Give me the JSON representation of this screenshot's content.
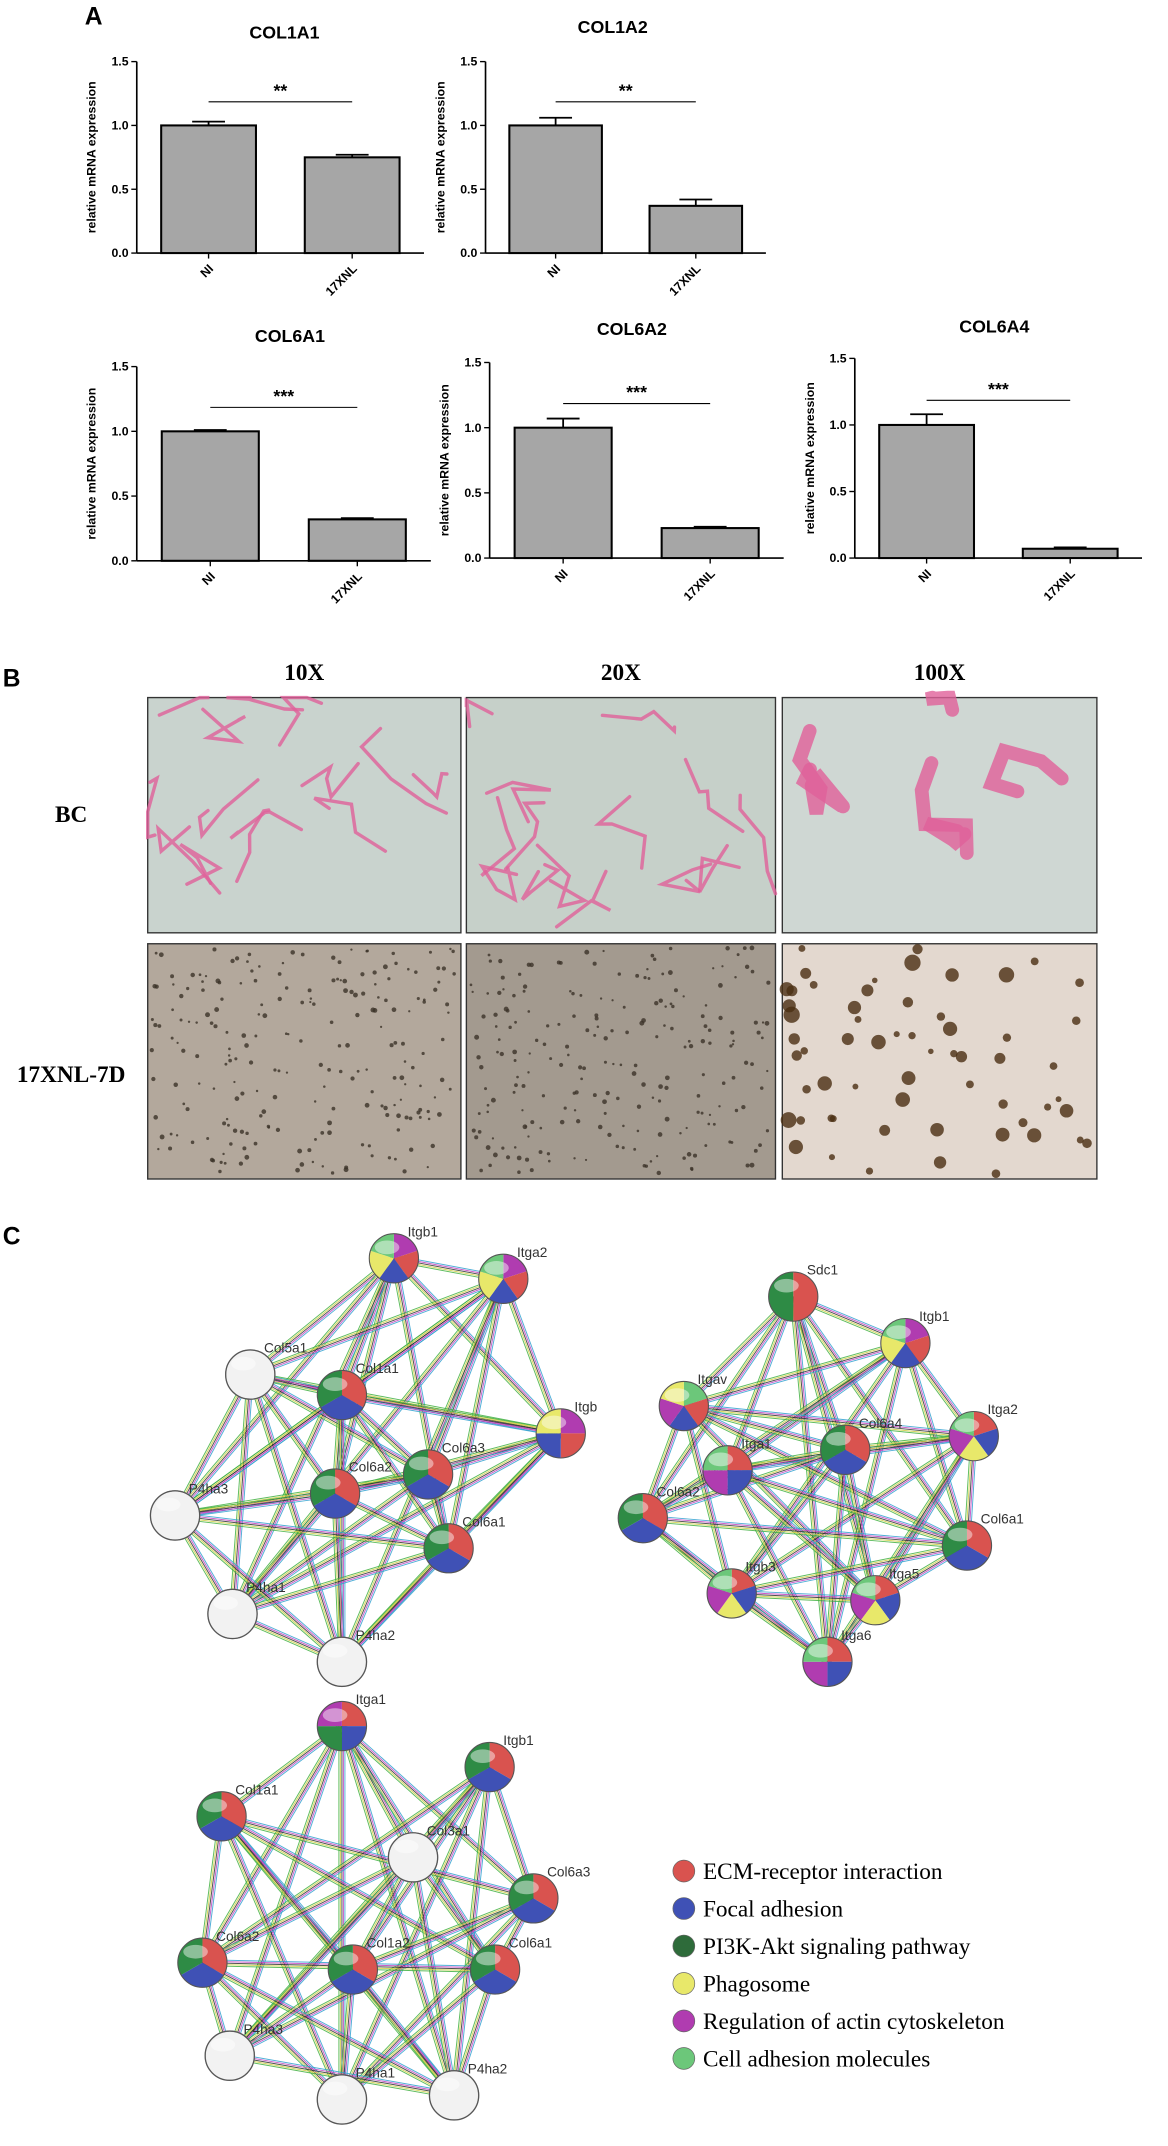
{
  "panel_labels": [
    "A",
    "B",
    "C"
  ],
  "chart_data": [
    {
      "type": "bar",
      "title": "COL1A1",
      "y_label": "relative mRNA expression",
      "categories": [
        "NI",
        "17XNL"
      ],
      "values": [
        1.0,
        0.75
      ],
      "errors": [
        0.03,
        0.02
      ],
      "significance": "**",
      "color": "#a6a6a6",
      "ylim": [
        0,
        1.5
      ],
      "yticks": [
        {
          "value": 0,
          "label": "0.0"
        },
        {
          "value": 0.5,
          "label": "0.5"
        },
        {
          "value": 1,
          "label": "1.0"
        },
        {
          "value": 1.5,
          "label": "1.5"
        }
      ]
    },
    {
      "type": "bar",
      "title": "COL1A2",
      "y_label": "relative mRNA expression",
      "categories": [
        "NI",
        "17XNL"
      ],
      "values": [
        1.0,
        0.37
      ],
      "errors": [
        0.06,
        0.05
      ],
      "significance": "**",
      "color": "#a6a6a6",
      "ylim": [
        0,
        1.5
      ],
      "yticks": [
        {
          "value": 0,
          "label": "0.0"
        },
        {
          "value": 0.5,
          "label": "0.5"
        },
        {
          "value": 1,
          "label": "1.0"
        },
        {
          "value": 1.5,
          "label": "1.5"
        }
      ]
    },
    {
      "type": "bar",
      "title": "COL6A1",
      "y_label": "relative mRNA expression",
      "categories": [
        "NI",
        "17XNL"
      ],
      "values": [
        1.0,
        0.32
      ],
      "errors": [
        0.01,
        0.01
      ],
      "significance": "***",
      "color": "#a6a6a6",
      "ylim": [
        0,
        1.5
      ],
      "yticks": [
        {
          "value": 0,
          "label": "0.0"
        },
        {
          "value": 0.5,
          "label": "0.5"
        },
        {
          "value": 1,
          "label": "1.0"
        },
        {
          "value": 1.5,
          "label": "1.5"
        }
      ]
    },
    {
      "type": "bar",
      "title": "COL6A2",
      "y_label": "relative mRNA expression",
      "categories": [
        "NI",
        "17XNL"
      ],
      "values": [
        1.0,
        0.23
      ],
      "errors": [
        0.07,
        0.01
      ],
      "significance": "***",
      "color": "#a6a6a6",
      "ylim": [
        0,
        1.5
      ],
      "yticks": [
        {
          "value": 0,
          "label": "0.0"
        },
        {
          "value": 0.5,
          "label": "0.5"
        },
        {
          "value": 1,
          "label": "1.0"
        },
        {
          "value": 1.5,
          "label": "1.5"
        }
      ]
    },
    {
      "type": "bar",
      "title": "COL6A4",
      "y_label": "relative mRNA expression",
      "categories": [
        "NI",
        "17XNL"
      ],
      "values": [
        1.0,
        0.07
      ],
      "errors": [
        0.08,
        0.01
      ],
      "significance": "***",
      "color": "#a6a6a6",
      "ylim": [
        0,
        1.5
      ],
      "yticks": [
        {
          "value": 0,
          "label": "0.0"
        },
        {
          "value": 0.5,
          "label": "0.5"
        },
        {
          "value": 1,
          "label": "1.0"
        },
        {
          "value": 1.5,
          "label": "1.5"
        }
      ]
    }
  ],
  "micrographs": {
    "columns": [
      "10X",
      "20X",
      "100X"
    ],
    "rows": [
      "BC",
      "17XNL-7D"
    ]
  },
  "networks": [
    {
      "nodes": [
        {
          "label": "Itgb1",
          "colors": [
            "#b03cb0",
            "#d9534f",
            "#3f51b5",
            "#e8e86a",
            "#6cc77a"
          ]
        },
        {
          "label": "Itga2",
          "colors": [
            "#b03cb0",
            "#d9534f",
            "#3f51b5",
            "#e8e86a",
            "#6cc77a"
          ]
        },
        {
          "label": "Itgb",
          "colors": [
            "#b03cb0",
            "#d9534f",
            "#3f51b5",
            "#e8e86a"
          ]
        },
        {
          "label": "Col5a1",
          "colors": [
            "#f2f2f2"
          ]
        },
        {
          "label": "Col1a1",
          "colors": [
            "#d9534f",
            "#3f51b5",
            "#2e8b45"
          ]
        },
        {
          "label": "Col6a3",
          "colors": [
            "#d9534f",
            "#3f51b5",
            "#2e8b45"
          ]
        },
        {
          "label": "Col6a2",
          "colors": [
            "#d9534f",
            "#3f51b5",
            "#2e8b45"
          ]
        },
        {
          "label": "P4ha3",
          "colors": [
            "#f2f2f2"
          ]
        },
        {
          "label": "Col6a1",
          "colors": [
            "#d9534f",
            "#3f51b5",
            "#2e8b45"
          ]
        },
        {
          "label": "P4ha1",
          "colors": [
            "#f2f2f2"
          ]
        },
        {
          "label": "P4ha2",
          "colors": [
            "#f2f2f2"
          ]
        }
      ]
    },
    {
      "nodes": [
        {
          "label": "Sdc1",
          "colors": [
            "#d9534f",
            "#2e8b45"
          ]
        },
        {
          "label": "Itgb1",
          "colors": [
            "#b03cb0",
            "#d9534f",
            "#3f51b5",
            "#e8e86a",
            "#6cc77a"
          ]
        },
        {
          "label": "Itgav",
          "colors": [
            "#6cc77a",
            "#d9534f",
            "#3f51b5",
            "#b03cb0",
            "#e8e86a"
          ]
        },
        {
          "label": "Itga2",
          "colors": [
            "#d9534f",
            "#3f51b5",
            "#e8e86a",
            "#b03cb0",
            "#6cc77a"
          ]
        },
        {
          "label": "Col6a4",
          "colors": [
            "#d9534f",
            "#3f51b5",
            "#2e8b45"
          ]
        },
        {
          "label": "Itga1",
          "colors": [
            "#d9534f",
            "#3f51b5",
            "#b03cb0",
            "#6cc77a"
          ]
        },
        {
          "label": "Col6a2",
          "colors": [
            "#d9534f",
            "#3f51b5",
            "#2e8b45"
          ]
        },
        {
          "label": "Col6a1",
          "colors": [
            "#d9534f",
            "#3f51b5",
            "#2e8b45"
          ]
        },
        {
          "label": "Itgb3",
          "colors": [
            "#d9534f",
            "#3f51b5",
            "#e8e86a",
            "#b03cb0",
            "#6cc77a"
          ]
        },
        {
          "label": "Itga5",
          "colors": [
            "#d9534f",
            "#3f51b5",
            "#e8e86a",
            "#b03cb0",
            "#6cc77a"
          ]
        },
        {
          "label": "Itga6",
          "colors": [
            "#d9534f",
            "#3f51b5",
            "#b03cb0",
            "#6cc77a"
          ]
        }
      ]
    },
    {
      "nodes": [
        {
          "label": "Itga1",
          "colors": [
            "#d9534f",
            "#3f51b5",
            "#2e8b45",
            "#b03cb0"
          ]
        },
        {
          "label": "Itgb1",
          "colors": [
            "#d9534f",
            "#3f51b5",
            "#2e8b45"
          ]
        },
        {
          "label": "Col1a1",
          "colors": [
            "#d9534f",
            "#3f51b5",
            "#2e8b45"
          ]
        },
        {
          "label": "Col3a1",
          "colors": [
            "#f2f2f2"
          ]
        },
        {
          "label": "Col6a3",
          "colors": [
            "#d9534f",
            "#3f51b5",
            "#2e8b45"
          ]
        },
        {
          "label": "Col6a2",
          "colors": [
            "#d9534f",
            "#3f51b5",
            "#2e8b45"
          ]
        },
        {
          "label": "Col1a2",
          "colors": [
            "#d9534f",
            "#3f51b5",
            "#2e8b45"
          ]
        },
        {
          "label": "Col6a1",
          "colors": [
            "#d9534f",
            "#3f51b5",
            "#2e8b45"
          ]
        },
        {
          "label": "P4ha3",
          "colors": [
            "#f2f2f2"
          ]
        },
        {
          "label": "P4ha1",
          "colors": [
            "#f2f2f2"
          ]
        },
        {
          "label": "P4ha2",
          "colors": [
            "#f2f2f2"
          ]
        }
      ]
    }
  ],
  "legend": [
    {
      "label": "ECM-receptor interaction",
      "color": "#d9534f"
    },
    {
      "label": "Focal adhesion",
      "color": "#3f51b5"
    },
    {
      "label": "PI3K-Akt signaling pathway",
      "color": "#2e6b3a"
    },
    {
      "label": "Phagosome",
      "color": "#e8e86a"
    },
    {
      "label": "Regulation of actin cytoskeleton",
      "color": "#b03cb0"
    },
    {
      "label": "Cell adhesion molecules",
      "color": "#6cc77a"
    }
  ]
}
